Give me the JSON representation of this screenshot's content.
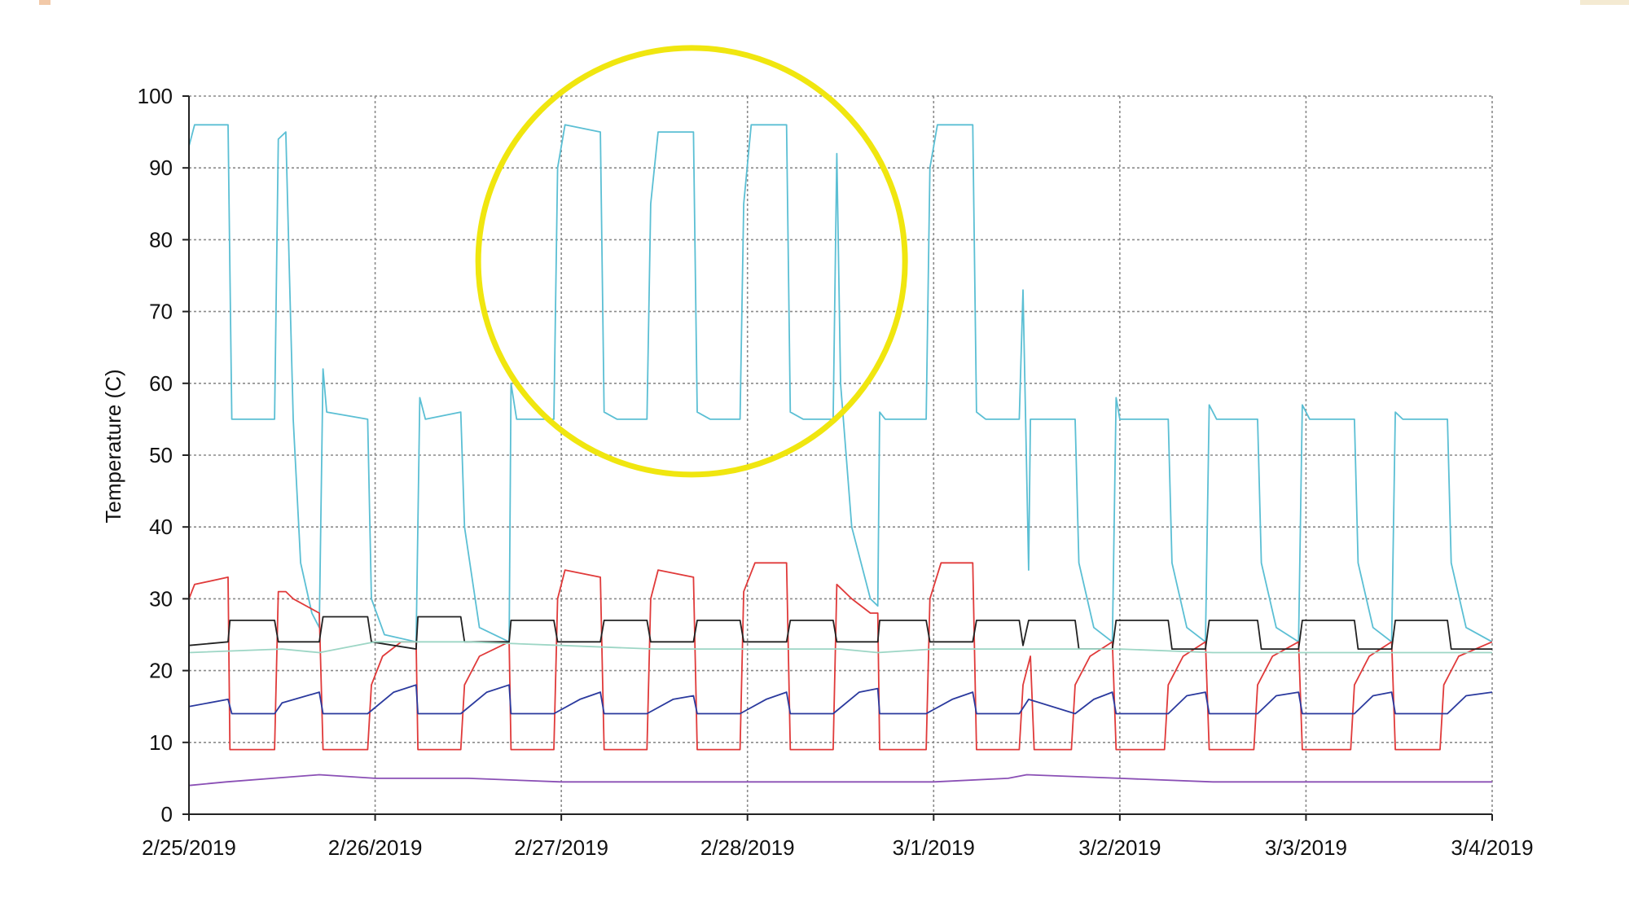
{
  "chart_data": {
    "type": "line",
    "title": "",
    "ylabel": "Temperature (C)",
    "xlabel": "",
    "ylim": [
      0,
      100
    ],
    "yticks": [
      0,
      10,
      20,
      30,
      40,
      50,
      60,
      70,
      80,
      90,
      100
    ],
    "xlim_days": [
      0,
      7
    ],
    "xticks": [
      {
        "day": 0,
        "label": "2/25/2019"
      },
      {
        "day": 1,
        "label": "2/26/2019"
      },
      {
        "day": 2,
        "label": "2/27/2019"
      },
      {
        "day": 3,
        "label": "2/28/2019"
      },
      {
        "day": 4,
        "label": "3/1/2019"
      },
      {
        "day": 5,
        "label": "3/2/2019"
      },
      {
        "day": 6,
        "label": "3/3/2019"
      },
      {
        "day": 7,
        "label": "3/4/2019"
      }
    ],
    "grid": true,
    "highlight": {
      "shape": "circle",
      "color": "#f0e60f",
      "center": {
        "day": 2.7,
        "temp": 77
      }
    },
    "series": [
      {
        "color": "#5bbfd4",
        "points": [
          [
            0.0,
            93
          ],
          [
            0.03,
            96
          ],
          [
            0.21,
            96
          ],
          [
            0.23,
            55
          ],
          [
            0.46,
            55
          ],
          [
            0.48,
            94
          ],
          [
            0.52,
            95
          ],
          [
            0.54,
            75
          ],
          [
            0.56,
            55
          ],
          [
            0.6,
            35
          ],
          [
            0.66,
            28
          ],
          [
            0.7,
            26
          ],
          [
            0.72,
            62
          ],
          [
            0.74,
            56
          ],
          [
            0.96,
            55
          ],
          [
            0.98,
            30
          ],
          [
            1.05,
            25
          ],
          [
            1.22,
            24
          ],
          [
            1.24,
            58
          ],
          [
            1.27,
            55
          ],
          [
            1.46,
            56
          ],
          [
            1.48,
            40
          ],
          [
            1.56,
            26
          ],
          [
            1.72,
            24
          ],
          [
            1.73,
            60
          ],
          [
            1.76,
            55
          ],
          [
            1.96,
            55
          ],
          [
            1.98,
            90
          ],
          [
            2.02,
            96
          ],
          [
            2.21,
            95
          ],
          [
            2.23,
            56
          ],
          [
            2.3,
            55
          ],
          [
            2.46,
            55
          ],
          [
            2.48,
            85
          ],
          [
            2.52,
            95
          ],
          [
            2.71,
            95
          ],
          [
            2.73,
            56
          ],
          [
            2.8,
            55
          ],
          [
            2.96,
            55
          ],
          [
            2.98,
            85
          ],
          [
            3.02,
            96
          ],
          [
            3.21,
            96
          ],
          [
            3.23,
            56
          ],
          [
            3.3,
            55
          ],
          [
            3.46,
            55
          ],
          [
            3.48,
            92
          ],
          [
            3.5,
            60
          ],
          [
            3.56,
            40
          ],
          [
            3.66,
            30
          ],
          [
            3.7,
            29
          ],
          [
            3.71,
            56
          ],
          [
            3.74,
            55
          ],
          [
            3.96,
            55
          ],
          [
            3.98,
            90
          ],
          [
            4.02,
            96
          ],
          [
            4.21,
            96
          ],
          [
            4.23,
            56
          ],
          [
            4.28,
            55
          ],
          [
            4.46,
            55
          ],
          [
            4.48,
            73
          ],
          [
            4.51,
            34
          ],
          [
            4.52,
            55
          ],
          [
            4.76,
            55
          ],
          [
            4.78,
            35
          ],
          [
            4.86,
            26
          ],
          [
            4.96,
            24
          ],
          [
            4.98,
            58
          ],
          [
            5.0,
            55
          ],
          [
            5.26,
            55
          ],
          [
            5.28,
            35
          ],
          [
            5.36,
            26
          ],
          [
            5.46,
            24
          ],
          [
            5.48,
            57
          ],
          [
            5.52,
            55
          ],
          [
            5.74,
            55
          ],
          [
            5.76,
            35
          ],
          [
            5.84,
            26
          ],
          [
            5.96,
            24
          ],
          [
            5.98,
            57
          ],
          [
            6.02,
            55
          ],
          [
            6.26,
            55
          ],
          [
            6.28,
            35
          ],
          [
            6.36,
            26
          ],
          [
            6.46,
            24
          ],
          [
            6.48,
            56
          ],
          [
            6.52,
            55
          ],
          [
            6.76,
            55
          ],
          [
            6.78,
            35
          ],
          [
            6.86,
            26
          ],
          [
            7.0,
            24
          ]
        ]
      },
      {
        "color": "#e03a3a",
        "points": [
          [
            0.0,
            30
          ],
          [
            0.03,
            32
          ],
          [
            0.21,
            33
          ],
          [
            0.22,
            9
          ],
          [
            0.46,
            9
          ],
          [
            0.48,
            31
          ],
          [
            0.52,
            31
          ],
          [
            0.56,
            30
          ],
          [
            0.7,
            28
          ],
          [
            0.72,
            9
          ],
          [
            0.96,
            9
          ],
          [
            0.98,
            18
          ],
          [
            1.04,
            22
          ],
          [
            1.14,
            24
          ],
          [
            1.22,
            24
          ],
          [
            1.23,
            9
          ],
          [
            1.46,
            9
          ],
          [
            1.48,
            18
          ],
          [
            1.56,
            22
          ],
          [
            1.72,
            24
          ],
          [
            1.73,
            9
          ],
          [
            1.96,
            9
          ],
          [
            1.98,
            30
          ],
          [
            2.02,
            34
          ],
          [
            2.21,
            33
          ],
          [
            2.23,
            9
          ],
          [
            2.46,
            9
          ],
          [
            2.48,
            30
          ],
          [
            2.52,
            34
          ],
          [
            2.71,
            33
          ],
          [
            2.73,
            9
          ],
          [
            2.96,
            9
          ],
          [
            2.98,
            31
          ],
          [
            3.04,
            35
          ],
          [
            3.21,
            35
          ],
          [
            3.23,
            9
          ],
          [
            3.46,
            9
          ],
          [
            3.48,
            32
          ],
          [
            3.56,
            30
          ],
          [
            3.66,
            28
          ],
          [
            3.7,
            28
          ],
          [
            3.71,
            9
          ],
          [
            3.96,
            9
          ],
          [
            3.98,
            30
          ],
          [
            4.04,
            35
          ],
          [
            4.21,
            35
          ],
          [
            4.23,
            9
          ],
          [
            4.46,
            9
          ],
          [
            4.48,
            18
          ],
          [
            4.52,
            22
          ],
          [
            4.54,
            9
          ],
          [
            4.74,
            9
          ],
          [
            4.76,
            18
          ],
          [
            4.84,
            22
          ],
          [
            4.96,
            24
          ],
          [
            4.98,
            9
          ],
          [
            5.24,
            9
          ],
          [
            5.26,
            18
          ],
          [
            5.34,
            22
          ],
          [
            5.46,
            24
          ],
          [
            5.48,
            9
          ],
          [
            5.72,
            9
          ],
          [
            5.74,
            18
          ],
          [
            5.82,
            22
          ],
          [
            5.96,
            24
          ],
          [
            5.98,
            9
          ],
          [
            6.24,
            9
          ],
          [
            6.26,
            18
          ],
          [
            6.34,
            22
          ],
          [
            6.46,
            24
          ],
          [
            6.48,
            9
          ],
          [
            6.72,
            9
          ],
          [
            6.74,
            18
          ],
          [
            6.82,
            22
          ],
          [
            7.0,
            24
          ]
        ]
      },
      {
        "color": "#222222",
        "points": [
          [
            0.0,
            23.5
          ],
          [
            0.21,
            24
          ],
          [
            0.22,
            27
          ],
          [
            0.46,
            27
          ],
          [
            0.48,
            24
          ],
          [
            0.7,
            24
          ],
          [
            0.72,
            27.5
          ],
          [
            0.96,
            27.5
          ],
          [
            0.98,
            24
          ],
          [
            1.22,
            23
          ],
          [
            1.23,
            27.5
          ],
          [
            1.46,
            27.5
          ],
          [
            1.48,
            24
          ],
          [
            1.72,
            24
          ],
          [
            1.73,
            27
          ],
          [
            1.96,
            27
          ],
          [
            1.98,
            24
          ],
          [
            2.21,
            24
          ],
          [
            2.23,
            27
          ],
          [
            2.46,
            27
          ],
          [
            2.48,
            24
          ],
          [
            2.71,
            24
          ],
          [
            2.73,
            27
          ],
          [
            2.96,
            27
          ],
          [
            2.98,
            24
          ],
          [
            3.21,
            24
          ],
          [
            3.23,
            27
          ],
          [
            3.46,
            27
          ],
          [
            3.48,
            24
          ],
          [
            3.7,
            24
          ],
          [
            3.71,
            27
          ],
          [
            3.96,
            27
          ],
          [
            3.98,
            24
          ],
          [
            4.21,
            24
          ],
          [
            4.23,
            27
          ],
          [
            4.46,
            27
          ],
          [
            4.48,
            23.5
          ],
          [
            4.51,
            27
          ],
          [
            4.76,
            27
          ],
          [
            4.78,
            23
          ],
          [
            4.96,
            23
          ],
          [
            4.98,
            27
          ],
          [
            5.26,
            27
          ],
          [
            5.28,
            23
          ],
          [
            5.46,
            23
          ],
          [
            5.48,
            27
          ],
          [
            5.74,
            27
          ],
          [
            5.76,
            23
          ],
          [
            5.96,
            23
          ],
          [
            5.98,
            27
          ],
          [
            6.26,
            27
          ],
          [
            6.28,
            23
          ],
          [
            6.46,
            23
          ],
          [
            6.48,
            27
          ],
          [
            6.76,
            27
          ],
          [
            6.78,
            23
          ],
          [
            7.0,
            23
          ]
        ]
      },
      {
        "color": "#9dd6c5",
        "points": [
          [
            0.0,
            22.5
          ],
          [
            0.5,
            23
          ],
          [
            0.7,
            22.5
          ],
          [
            1.0,
            24
          ],
          [
            1.5,
            24
          ],
          [
            2.0,
            23.5
          ],
          [
            2.5,
            23
          ],
          [
            3.0,
            23
          ],
          [
            3.5,
            23
          ],
          [
            3.7,
            22.5
          ],
          [
            4.0,
            23
          ],
          [
            4.5,
            23
          ],
          [
            5.0,
            23
          ],
          [
            5.5,
            22.5
          ],
          [
            6.0,
            22.5
          ],
          [
            6.5,
            22.5
          ],
          [
            7.0,
            22.5
          ]
        ]
      },
      {
        "color": "#2b3a9e",
        "points": [
          [
            0.0,
            15
          ],
          [
            0.21,
            16
          ],
          [
            0.23,
            14
          ],
          [
            0.46,
            14
          ],
          [
            0.5,
            15.5
          ],
          [
            0.7,
            17
          ],
          [
            0.72,
            14
          ],
          [
            0.96,
            14
          ],
          [
            1.1,
            17
          ],
          [
            1.22,
            18
          ],
          [
            1.23,
            14
          ],
          [
            1.46,
            14
          ],
          [
            1.6,
            17
          ],
          [
            1.72,
            18
          ],
          [
            1.73,
            14
          ],
          [
            1.96,
            14
          ],
          [
            2.1,
            16
          ],
          [
            2.21,
            17
          ],
          [
            2.23,
            14
          ],
          [
            2.46,
            14
          ],
          [
            2.6,
            16
          ],
          [
            2.71,
            16.5
          ],
          [
            2.73,
            14
          ],
          [
            2.96,
            14
          ],
          [
            3.1,
            16
          ],
          [
            3.21,
            17
          ],
          [
            3.23,
            14
          ],
          [
            3.46,
            14
          ],
          [
            3.6,
            17
          ],
          [
            3.7,
            17.5
          ],
          [
            3.71,
            14
          ],
          [
            3.96,
            14
          ],
          [
            4.1,
            16
          ],
          [
            4.21,
            17
          ],
          [
            4.23,
            14
          ],
          [
            4.46,
            14
          ],
          [
            4.51,
            16
          ],
          [
            4.76,
            14
          ],
          [
            4.86,
            16
          ],
          [
            4.96,
            17
          ],
          [
            4.98,
            14
          ],
          [
            5.26,
            14
          ],
          [
            5.36,
            16.5
          ],
          [
            5.46,
            17
          ],
          [
            5.48,
            14
          ],
          [
            5.74,
            14
          ],
          [
            5.84,
            16.5
          ],
          [
            5.96,
            17
          ],
          [
            5.98,
            14
          ],
          [
            6.26,
            14
          ],
          [
            6.36,
            16.5
          ],
          [
            6.46,
            17
          ],
          [
            6.48,
            14
          ],
          [
            6.76,
            14
          ],
          [
            6.86,
            16.5
          ],
          [
            7.0,
            17
          ]
        ]
      },
      {
        "color": "#8a4fb5",
        "points": [
          [
            0.0,
            4
          ],
          [
            0.2,
            4.5
          ],
          [
            0.45,
            5
          ],
          [
            0.7,
            5.5
          ],
          [
            1.0,
            5
          ],
          [
            1.5,
            5
          ],
          [
            2.0,
            4.5
          ],
          [
            2.5,
            4.5
          ],
          [
            3.0,
            4.5
          ],
          [
            3.5,
            4.5
          ],
          [
            4.0,
            4.5
          ],
          [
            4.4,
            5
          ],
          [
            4.5,
            5.5
          ],
          [
            5.0,
            5
          ],
          [
            5.5,
            4.5
          ],
          [
            6.0,
            4.5
          ],
          [
            6.5,
            4.5
          ],
          [
            7.0,
            4.5
          ]
        ]
      }
    ]
  }
}
